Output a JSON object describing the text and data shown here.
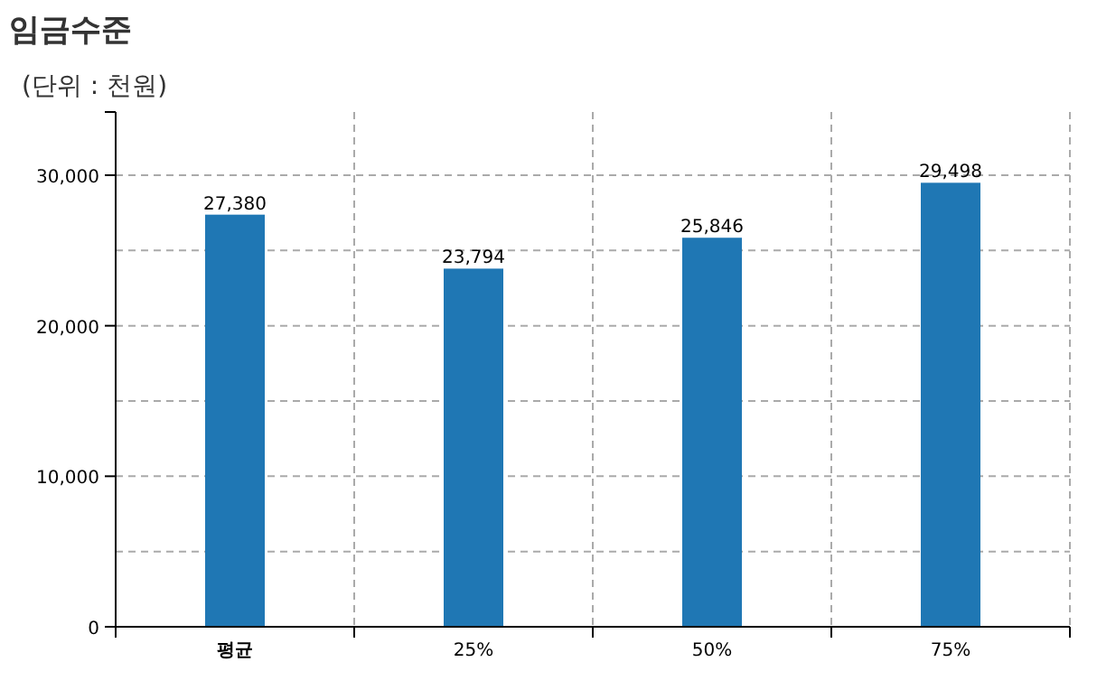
{
  "chart_data": {
    "type": "bar",
    "title": "임금수준",
    "subtitle": "(단위 : 천원)",
    "categories": [
      "평균",
      "25%",
      "50%",
      "75%"
    ],
    "values": [
      27380,
      23794,
      25846,
      29498
    ],
    "color": "#1f77b4",
    "ylim": [
      0,
      34200
    ],
    "yticks": [
      0,
      {
        "value": 5000,
        "label": null
      },
      {
        "value": 10000,
        "label": "10,000"
      },
      {
        "value": 15000,
        "label": null
      },
      {
        "value": 20000,
        "label": "20,000"
      },
      {
        "value": 25000,
        "label": null
      },
      {
        "value": 30000,
        "label": "30,000"
      }
    ],
    "grid": true,
    "value_labels": [
      "27,380",
      "23,794",
      "25,846",
      "29,498"
    ]
  }
}
